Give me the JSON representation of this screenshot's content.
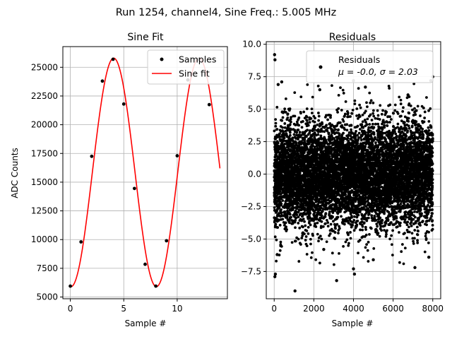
{
  "figure_title": "Run 1254, channel4, Sine Freq.: 5.005 MHz",
  "colors": {
    "samples": "#000000",
    "fit": "#e41a1c",
    "grid": "#b0b0b0",
    "residuals": "#000000"
  },
  "chart_data": [
    {
      "type": "line",
      "title": "Sine Fit",
      "xlabel": "Sample #",
      "ylabel": "ADC Counts",
      "xlim": [
        -0.7,
        14.7
      ],
      "ylim": [
        4850,
        26800
      ],
      "xticks": [
        0,
        5,
        10
      ],
      "yticks": [
        5000,
        7500,
        10000,
        12500,
        15000,
        17500,
        20000,
        22500,
        25000
      ],
      "ytick_labels": [
        "5000",
        "7500",
        "10000",
        "12500",
        "15000",
        "17500",
        "20000",
        "22500",
        "25000"
      ],
      "grid": true,
      "legend_position": "top-right",
      "series": [
        {
          "name": "Samples",
          "kind": "scatter",
          "x": [
            0,
            1,
            2,
            3,
            4,
            5,
            6,
            7,
            8,
            9,
            10,
            11,
            12,
            13
          ],
          "y": [
            5950,
            9800,
            17250,
            23800,
            25700,
            21800,
            14450,
            7850,
            5950,
            9900,
            17300,
            23900,
            25700,
            21750
          ]
        },
        {
          "name": "Sine fit",
          "kind": "line",
          "fit": {
            "offset": 15850,
            "amplitude": 9950,
            "period_samples": 7.99,
            "phase_rad": -1.62
          },
          "x_range": [
            0,
            14
          ]
        }
      ]
    },
    {
      "type": "scatter",
      "title": "Residuals",
      "xlabel": "Sample #",
      "xlim": [
        -400,
        8400
      ],
      "ylim": [
        -9.6,
        10.2
      ],
      "xticks": [
        0,
        2000,
        4000,
        6000,
        8000
      ],
      "yticks": [
        -7.5,
        -5.0,
        -2.5,
        0.0,
        2.5,
        5.0,
        7.5,
        10.0
      ],
      "ytick_labels": [
        "−7.5",
        "−5.0",
        "−2.5",
        "0.0",
        "2.5",
        "5.0",
        "7.5",
        "10.0"
      ],
      "grid": true,
      "legend_position": "top-right",
      "series": [
        {
          "name": "Residuals",
          "stats_label": "μ = -0.0, σ = 2.03",
          "n_points": 8000,
          "x_range": [
            0,
            8000
          ],
          "mean": 0.0,
          "std": 2.03,
          "seed": 1254
        }
      ],
      "outliers": [
        {
          "x": 20,
          "y": 9.2
        },
        {
          "x": 40,
          "y": 8.8
        },
        {
          "x": 35,
          "y": -7.9
        },
        {
          "x": 60,
          "y": -7.7
        },
        {
          "x": 1050,
          "y": -9.0
        },
        {
          "x": 3150,
          "y": -8.2
        },
        {
          "x": 4050,
          "y": -7.7
        },
        {
          "x": 4000,
          "y": -7.3
        },
        {
          "x": 7100,
          "y": -7.2
        },
        {
          "x": 4000,
          "y": 7.2
        },
        {
          "x": 380,
          "y": 7.1
        },
        {
          "x": 8000,
          "y": 7.5
        },
        {
          "x": 7900,
          "y": 7.2
        },
        {
          "x": 6750,
          "y": 6.1
        },
        {
          "x": 2300,
          "y": 6.5
        },
        {
          "x": 4600,
          "y": 6.7
        },
        {
          "x": 200,
          "y": 6.9
        },
        {
          "x": 5000,
          "y": -6.6
        },
        {
          "x": 7800,
          "y": -6.4
        },
        {
          "x": 150,
          "y": -6.2
        },
        {
          "x": 2500,
          "y": -5.8
        }
      ]
    }
  ]
}
